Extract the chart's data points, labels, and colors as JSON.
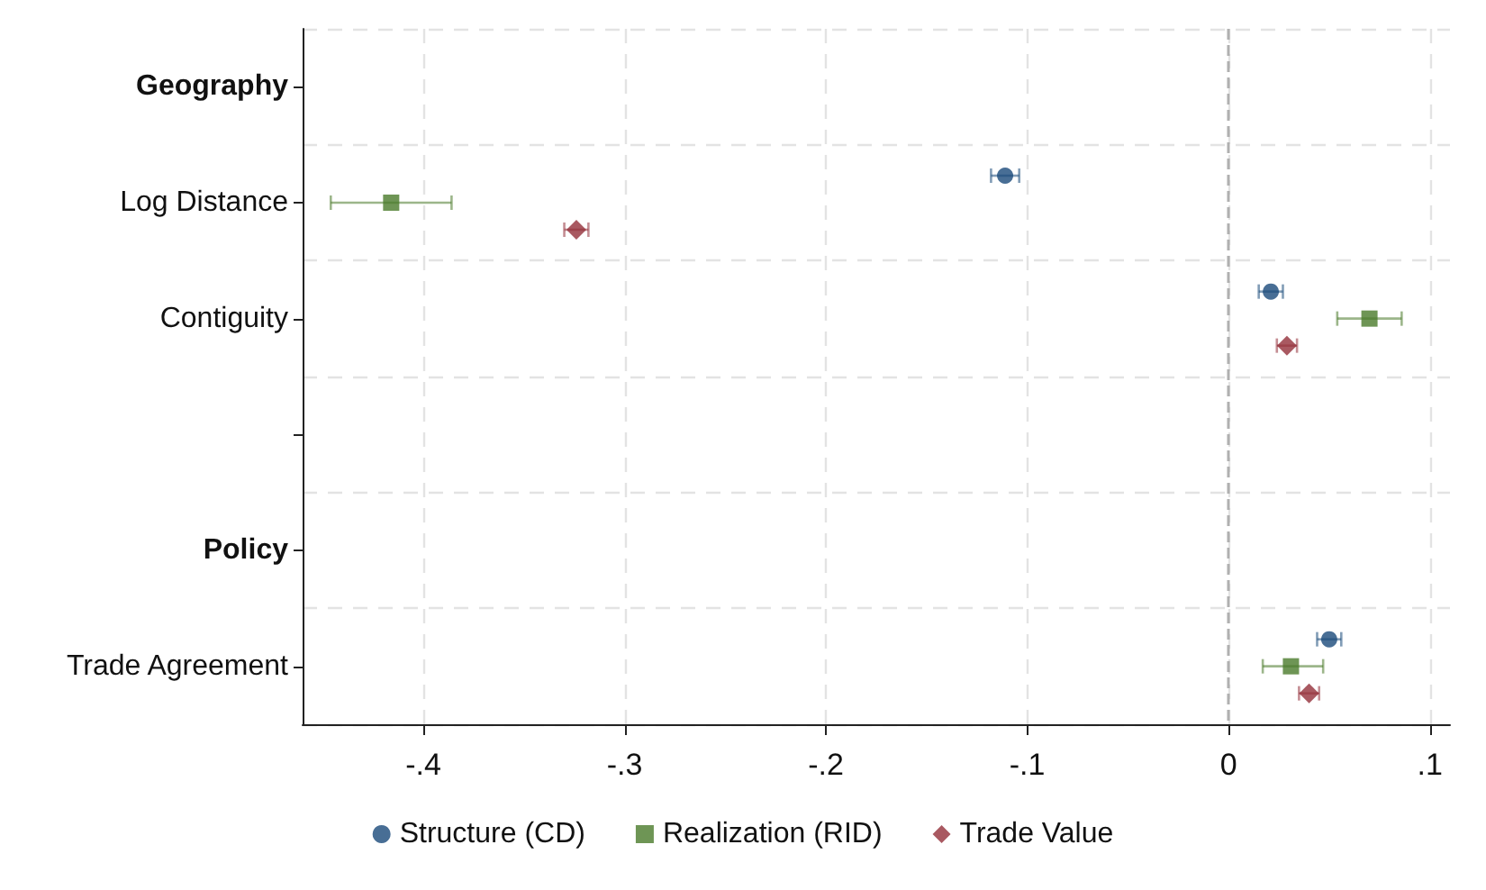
{
  "chart_data": {
    "type": "scatter",
    "orientation": "horizontal",
    "categories": [
      "Geography",
      "Log Distance",
      "Contiguity",
      null,
      "Policy",
      "Trade Agreement"
    ],
    "series": [
      {
        "name": "Structure (CD)",
        "color": "#1a4a7a",
        "marker": "circle",
        "values": [
          null,
          -0.111,
          0.021,
          null,
          null,
          0.05
        ],
        "errors": [
          null,
          0.007,
          0.006,
          null,
          null,
          0.006
        ]
      },
      {
        "name": "Realization (RID)",
        "color": "#4a7a2a",
        "marker": "square",
        "values": [
          null,
          -0.416,
          0.07,
          null,
          null,
          0.031
        ],
        "errors": [
          null,
          [
            -0.446,
            -0.386
          ],
          [
            0.054,
            0.086
          ],
          null,
          null,
          [
            0.017,
            0.047
          ]
        ]
      },
      {
        "name": "Trade Value",
        "color": "#93303a",
        "marker": "diamond",
        "values": [
          null,
          -0.324,
          0.029,
          null,
          null,
          0.04
        ],
        "errors": [
          null,
          0.006,
          0.005,
          null,
          null,
          0.005
        ]
      }
    ],
    "xlim": [
      -0.46,
      0.11
    ],
    "xticks": [
      {
        "value": -0.4,
        "label": "-.4"
      },
      {
        "value": -0.3,
        "label": "-.3"
      },
      {
        "value": -0.2,
        "label": "-.2"
      },
      {
        "value": -0.1,
        "label": "-.1"
      },
      0,
      {
        "value": 0.1,
        "label": ".1"
      }
    ],
    "ref_lines": [
      {
        "axis": "x",
        "value": 0,
        "color": "#b0b0b0",
        "line_style": "dashed"
      }
    ],
    "grid": true,
    "legend": "bottom"
  }
}
